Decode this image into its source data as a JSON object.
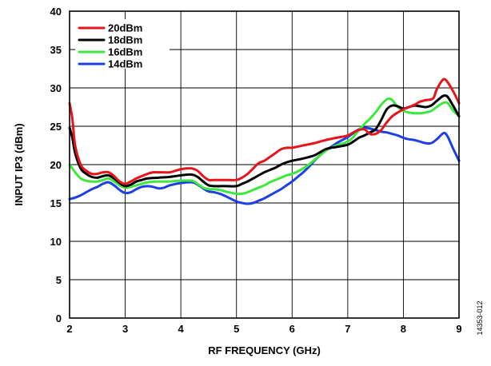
{
  "figure_id": "14353-012",
  "chart_data": {
    "type": "line",
    "xlabel": "RF FREQUENCY (GHz)",
    "ylabel": "INPUT IP3 (dBm)",
    "xlim": [
      2,
      9
    ],
    "ylim": [
      0,
      40
    ],
    "x_ticks": [
      2,
      3,
      4,
      5,
      6,
      7,
      8,
      9
    ],
    "y_ticks": [
      0,
      5,
      10,
      15,
      20,
      25,
      30,
      35,
      40
    ],
    "grid": true,
    "legend_position": "top-left",
    "series": [
      {
        "name": "20dBm",
        "color": "#e8141b",
        "points": [
          [
            2.0,
            28.0
          ],
          [
            2.05,
            26.0
          ],
          [
            2.1,
            22.5
          ],
          [
            2.2,
            20.0
          ],
          [
            2.3,
            19.2
          ],
          [
            2.4,
            18.8
          ],
          [
            2.5,
            18.8
          ],
          [
            2.6,
            19.0
          ],
          [
            2.7,
            19.0
          ],
          [
            2.8,
            18.5
          ],
          [
            2.9,
            17.8
          ],
          [
            3.0,
            17.5
          ],
          [
            3.1,
            17.8
          ],
          [
            3.2,
            18.2
          ],
          [
            3.3,
            18.5
          ],
          [
            3.4,
            18.8
          ],
          [
            3.5,
            19.0
          ],
          [
            3.6,
            19.0
          ],
          [
            3.8,
            19.0
          ],
          [
            3.9,
            19.2
          ],
          [
            4.0,
            19.4
          ],
          [
            4.1,
            19.5
          ],
          [
            4.2,
            19.5
          ],
          [
            4.3,
            19.2
          ],
          [
            4.4,
            18.5
          ],
          [
            4.5,
            18.0
          ],
          [
            4.6,
            18.0
          ],
          [
            4.8,
            18.0
          ],
          [
            5.0,
            18.0
          ],
          [
            5.1,
            18.3
          ],
          [
            5.2,
            18.8
          ],
          [
            5.3,
            19.5
          ],
          [
            5.4,
            20.2
          ],
          [
            5.5,
            20.5
          ],
          [
            5.6,
            21.0
          ],
          [
            5.7,
            21.5
          ],
          [
            5.8,
            22.0
          ],
          [
            5.9,
            22.2
          ],
          [
            6.0,
            22.2
          ],
          [
            6.2,
            22.5
          ],
          [
            6.4,
            22.8
          ],
          [
            6.5,
            23.0
          ],
          [
            6.6,
            23.2
          ],
          [
            6.8,
            23.5
          ],
          [
            7.0,
            23.8
          ],
          [
            7.1,
            24.2
          ],
          [
            7.2,
            24.5
          ],
          [
            7.3,
            24.6
          ],
          [
            7.4,
            24.0
          ],
          [
            7.5,
            24.0
          ],
          [
            7.6,
            24.5
          ],
          [
            7.7,
            25.5
          ],
          [
            7.8,
            26.3
          ],
          [
            7.9,
            26.8
          ],
          [
            8.0,
            27.2
          ],
          [
            8.1,
            27.5
          ],
          [
            8.2,
            27.8
          ],
          [
            8.3,
            28.2
          ],
          [
            8.4,
            28.4
          ],
          [
            8.5,
            28.5
          ],
          [
            8.55,
            28.8
          ],
          [
            8.6,
            29.8
          ],
          [
            8.7,
            31.0
          ],
          [
            8.75,
            31.1
          ],
          [
            8.8,
            30.7
          ],
          [
            8.9,
            29.5
          ],
          [
            9.0,
            28.0
          ]
        ]
      },
      {
        "name": "18dBm",
        "color": "#000000",
        "points": [
          [
            2.0,
            24.8
          ],
          [
            2.05,
            23.5
          ],
          [
            2.1,
            21.5
          ],
          [
            2.2,
            19.5
          ],
          [
            2.3,
            18.8
          ],
          [
            2.4,
            18.4
          ],
          [
            2.5,
            18.3
          ],
          [
            2.6,
            18.5
          ],
          [
            2.7,
            18.6
          ],
          [
            2.8,
            18.2
          ],
          [
            2.9,
            17.6
          ],
          [
            3.0,
            17.2
          ],
          [
            3.1,
            17.4
          ],
          [
            3.2,
            17.8
          ],
          [
            3.3,
            18.0
          ],
          [
            3.4,
            18.2
          ],
          [
            3.6,
            18.3
          ],
          [
            3.8,
            18.4
          ],
          [
            4.0,
            18.6
          ],
          [
            4.2,
            18.7
          ],
          [
            4.3,
            18.4
          ],
          [
            4.4,
            17.8
          ],
          [
            4.5,
            17.3
          ],
          [
            4.6,
            17.2
          ],
          [
            4.8,
            17.2
          ],
          [
            5.0,
            17.2
          ],
          [
            5.1,
            17.5
          ],
          [
            5.2,
            17.8
          ],
          [
            5.3,
            18.2
          ],
          [
            5.4,
            18.6
          ],
          [
            5.5,
            19.0
          ],
          [
            5.6,
            19.3
          ],
          [
            5.7,
            19.6
          ],
          [
            5.8,
            20.0
          ],
          [
            5.9,
            20.3
          ],
          [
            6.0,
            20.5
          ],
          [
            6.2,
            20.8
          ],
          [
            6.4,
            21.2
          ],
          [
            6.5,
            21.6
          ],
          [
            6.6,
            22.0
          ],
          [
            6.7,
            22.2
          ],
          [
            6.8,
            22.3
          ],
          [
            7.0,
            22.6
          ],
          [
            7.1,
            23.0
          ],
          [
            7.2,
            23.5
          ],
          [
            7.3,
            23.8
          ],
          [
            7.4,
            24.2
          ],
          [
            7.5,
            24.6
          ],
          [
            7.6,
            25.8
          ],
          [
            7.7,
            27.2
          ],
          [
            7.8,
            27.7
          ],
          [
            7.9,
            27.6
          ],
          [
            8.0,
            27.3
          ],
          [
            8.1,
            27.5
          ],
          [
            8.2,
            27.7
          ],
          [
            8.3,
            27.6
          ],
          [
            8.4,
            27.5
          ],
          [
            8.5,
            27.7
          ],
          [
            8.6,
            28.3
          ],
          [
            8.7,
            28.9
          ],
          [
            8.75,
            29.0
          ],
          [
            8.8,
            28.8
          ],
          [
            8.9,
            27.6
          ],
          [
            9.0,
            26.3
          ]
        ]
      },
      {
        "name": "16dBm",
        "color": "#3de83d",
        "points": [
          [
            2.0,
            20.0
          ],
          [
            2.1,
            19.0
          ],
          [
            2.2,
            18.2
          ],
          [
            2.3,
            17.9
          ],
          [
            2.4,
            17.8
          ],
          [
            2.5,
            17.8
          ],
          [
            2.6,
            18.0
          ],
          [
            2.7,
            18.2
          ],
          [
            2.8,
            17.8
          ],
          [
            2.9,
            17.3
          ],
          [
            3.0,
            17.0
          ],
          [
            3.1,
            17.1
          ],
          [
            3.2,
            17.3
          ],
          [
            3.3,
            17.5
          ],
          [
            3.4,
            17.7
          ],
          [
            3.6,
            17.8
          ],
          [
            3.8,
            17.8
          ],
          [
            4.0,
            17.9
          ],
          [
            4.2,
            17.9
          ],
          [
            4.3,
            17.5
          ],
          [
            4.4,
            17.0
          ],
          [
            4.5,
            16.8
          ],
          [
            4.6,
            16.8
          ],
          [
            4.7,
            16.7
          ],
          [
            4.8,
            16.5
          ],
          [
            5.0,
            16.2
          ],
          [
            5.1,
            16.2
          ],
          [
            5.2,
            16.4
          ],
          [
            5.3,
            16.7
          ],
          [
            5.4,
            17.0
          ],
          [
            5.5,
            17.3
          ],
          [
            5.6,
            17.7
          ],
          [
            5.7,
            18.0
          ],
          [
            5.8,
            18.3
          ],
          [
            5.9,
            18.6
          ],
          [
            6.0,
            18.8
          ],
          [
            6.1,
            19.1
          ],
          [
            6.2,
            19.5
          ],
          [
            6.3,
            20.0
          ],
          [
            6.4,
            20.6
          ],
          [
            6.5,
            21.2
          ],
          [
            6.6,
            21.8
          ],
          [
            6.7,
            22.2
          ],
          [
            6.8,
            22.5
          ],
          [
            7.0,
            23.0
          ],
          [
            7.1,
            23.6
          ],
          [
            7.2,
            24.5
          ],
          [
            7.3,
            25.3
          ],
          [
            7.4,
            26.0
          ],
          [
            7.5,
            26.8
          ],
          [
            7.6,
            27.8
          ],
          [
            7.7,
            28.5
          ],
          [
            7.75,
            28.6
          ],
          [
            7.8,
            28.4
          ],
          [
            7.9,
            27.5
          ],
          [
            8.0,
            27.0
          ],
          [
            8.1,
            26.8
          ],
          [
            8.2,
            26.7
          ],
          [
            8.3,
            26.7
          ],
          [
            8.4,
            26.8
          ],
          [
            8.5,
            27.0
          ],
          [
            8.6,
            27.5
          ],
          [
            8.7,
            28.0
          ],
          [
            8.75,
            28.1
          ],
          [
            8.8,
            28.0
          ],
          [
            8.9,
            27.0
          ],
          [
            9.0,
            26.3
          ]
        ]
      },
      {
        "name": "14dBm",
        "color": "#1f3fe6",
        "points": [
          [
            2.0,
            15.5
          ],
          [
            2.1,
            15.7
          ],
          [
            2.2,
            16.0
          ],
          [
            2.3,
            16.4
          ],
          [
            2.4,
            16.8
          ],
          [
            2.5,
            17.1
          ],
          [
            2.6,
            17.5
          ],
          [
            2.7,
            17.7
          ],
          [
            2.8,
            17.3
          ],
          [
            2.9,
            16.7
          ],
          [
            3.0,
            16.3
          ],
          [
            3.1,
            16.4
          ],
          [
            3.2,
            16.8
          ],
          [
            3.3,
            17.1
          ],
          [
            3.4,
            17.2
          ],
          [
            3.5,
            17.1
          ],
          [
            3.6,
            16.9
          ],
          [
            3.7,
            17.0
          ],
          [
            3.8,
            17.3
          ],
          [
            4.0,
            17.6
          ],
          [
            4.2,
            17.7
          ],
          [
            4.3,
            17.4
          ],
          [
            4.4,
            16.9
          ],
          [
            4.5,
            16.5
          ],
          [
            4.6,
            16.4
          ],
          [
            4.7,
            16.2
          ],
          [
            4.8,
            15.9
          ],
          [
            5.0,
            15.2
          ],
          [
            5.1,
            15.0
          ],
          [
            5.2,
            14.9
          ],
          [
            5.3,
            15.0
          ],
          [
            5.4,
            15.3
          ],
          [
            5.5,
            15.6
          ],
          [
            5.6,
            16.0
          ],
          [
            5.7,
            16.4
          ],
          [
            5.8,
            16.8
          ],
          [
            5.9,
            17.3
          ],
          [
            6.0,
            17.8
          ],
          [
            6.1,
            18.4
          ],
          [
            6.2,
            19.0
          ],
          [
            6.3,
            19.7
          ],
          [
            6.4,
            20.5
          ],
          [
            6.5,
            21.2
          ],
          [
            6.6,
            21.8
          ],
          [
            6.7,
            22.3
          ],
          [
            6.8,
            22.8
          ],
          [
            6.9,
            23.2
          ],
          [
            7.0,
            23.6
          ],
          [
            7.1,
            24.1
          ],
          [
            7.2,
            24.6
          ],
          [
            7.3,
            24.8
          ],
          [
            7.4,
            24.7
          ],
          [
            7.5,
            24.5
          ],
          [
            7.6,
            24.3
          ],
          [
            7.7,
            24.2
          ],
          [
            7.8,
            24.0
          ],
          [
            7.9,
            23.8
          ],
          [
            8.0,
            23.5
          ],
          [
            8.1,
            23.3
          ],
          [
            8.2,
            23.2
          ],
          [
            8.3,
            23.0
          ],
          [
            8.4,
            22.8
          ],
          [
            8.5,
            22.8
          ],
          [
            8.6,
            23.3
          ],
          [
            8.7,
            24.0
          ],
          [
            8.75,
            24.1
          ],
          [
            8.8,
            23.6
          ],
          [
            8.9,
            22.0
          ],
          [
            9.0,
            20.5
          ]
        ]
      }
    ]
  }
}
